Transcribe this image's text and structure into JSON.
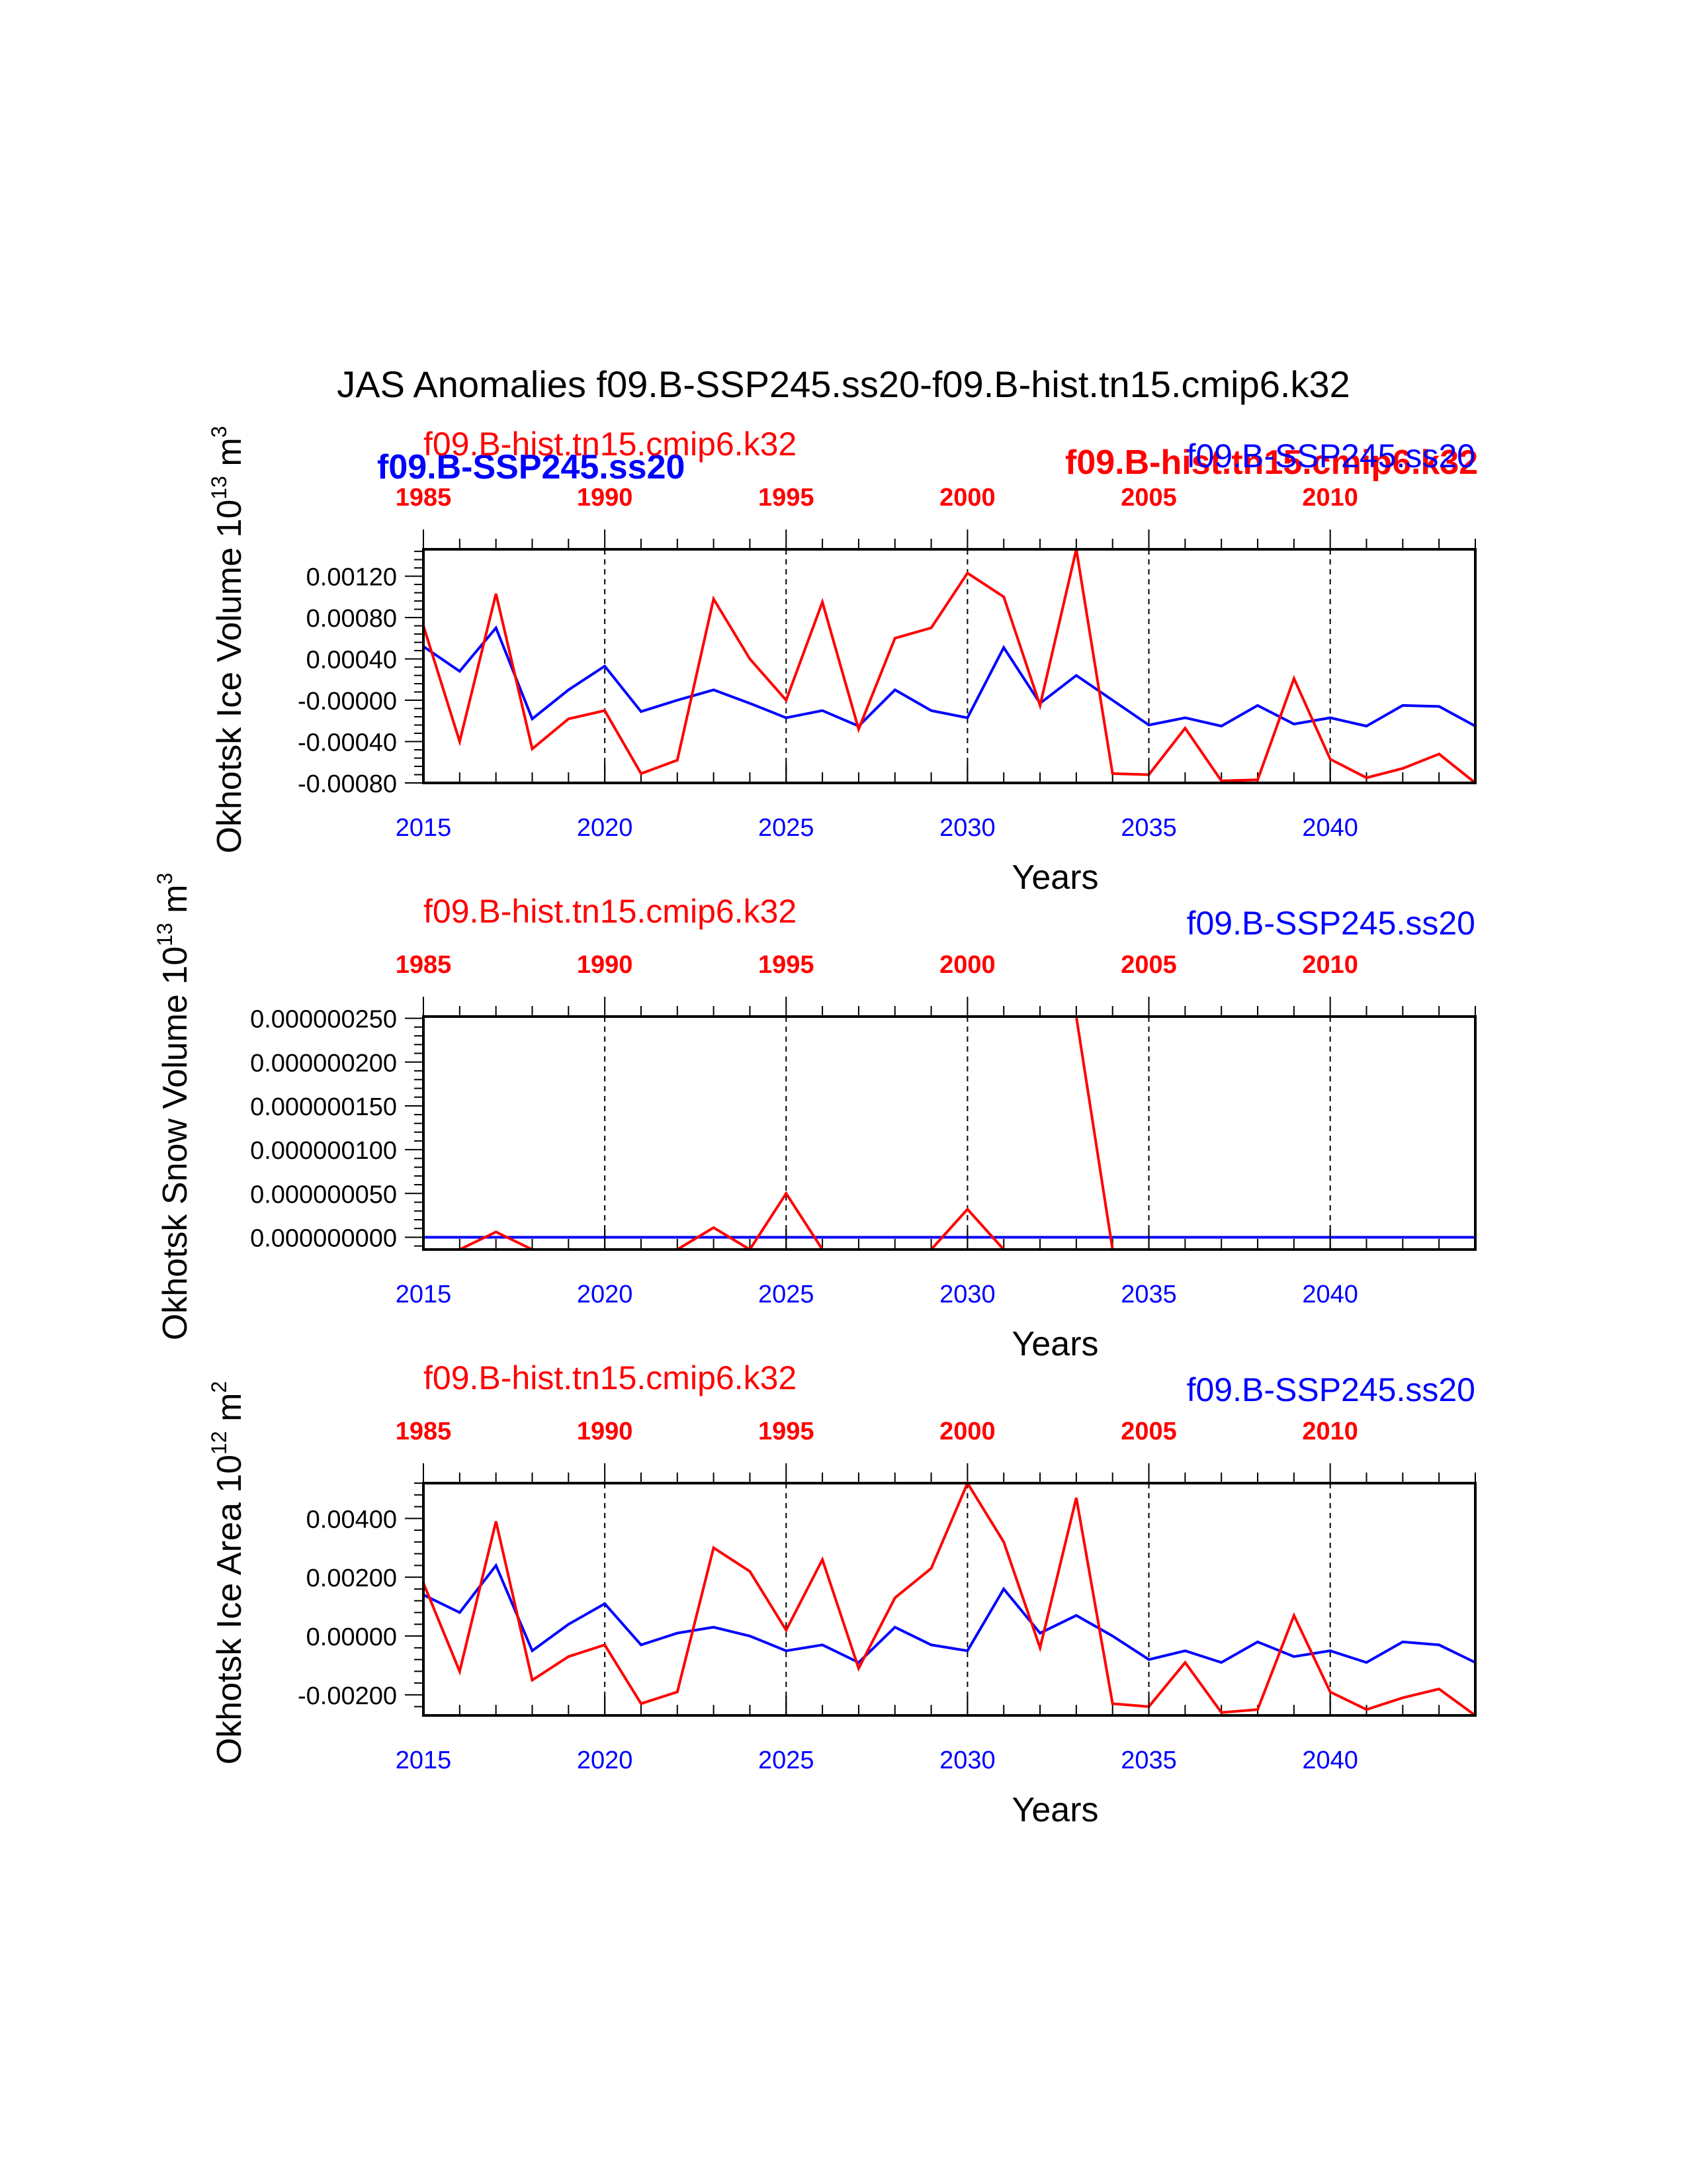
{
  "title": "JAS Anomalies f09.B-SSP245.ss20-f09.B-hist.tn15.cmip6.k32",
  "overlay_labels": {
    "blue_bold_left": "f09.B-SSP245.ss20",
    "red_bold_right": "f09.B-hist.tn15.cmip6.k32"
  },
  "colors": {
    "ssp245": "#0000ff",
    "hist": "#ff0000",
    "axis": "#000000"
  },
  "chart_data": [
    {
      "type": "line",
      "ylabel": "Okhotsk Ice Volume 10",
      "ylabel_sup": "13",
      "ylabel_unit": " m",
      "ylabel_unit_sup": "3",
      "xlabel": "Years",
      "top_left_label": "f09.B-hist.tn15.cmip6.k32",
      "top_right_label": "f09.B-SSP245.ss20",
      "ylim": [
        -0.0008,
        0.00146
      ],
      "yticks": [
        -0.0008,
        -0.0004,
        0.0,
        0.0004,
        0.0008,
        0.0012
      ],
      "ytick_labels": [
        "-0.00080",
        "-0.00040",
        "-0.00000",
        "0.00040",
        "0.00080",
        "0.00120"
      ],
      "xlim": [
        2015,
        2044
      ],
      "bottom_xticks": [
        2015,
        2020,
        2025,
        2030,
        2035,
        2040
      ],
      "bottom_xtick_labels": [
        "2015",
        "2020",
        "2025",
        "2030",
        "2035",
        "2040"
      ],
      "top_xtick_labels": [
        "1985",
        "1990",
        "1995",
        "2000",
        "2005",
        "2010"
      ],
      "x": [
        2015,
        2016,
        2017,
        2018,
        2019,
        2020,
        2021,
        2022,
        2023,
        2024,
        2025,
        2026,
        2027,
        2028,
        2029,
        2030,
        2031,
        2032,
        2033,
        2034,
        2035,
        2036,
        2037,
        2038,
        2039,
        2040,
        2041,
        2042,
        2043,
        2044
      ],
      "series": [
        {
          "name": "f09.B-SSP245.ss20",
          "color": "#0000ff",
          "values": [
            0.00052,
            0.00028,
            0.0007,
            -0.00018,
            0.0001,
            0.00033,
            -0.00011,
            -0.0,
            0.0001,
            -3e-05,
            -0.00017,
            -0.0001,
            -0.00025,
            0.0001,
            -0.0001,
            -0.00017,
            0.00051,
            -3e-05,
            0.00024,
            0.0,
            -0.00024,
            -0.00017,
            -0.00025,
            -5e-05,
            -0.00023,
            -0.00017,
            -0.00025,
            -5e-05,
            -6e-05,
            -0.00025
          ]
        },
        {
          "name": "f09.B-hist.tn15.cmip6.k32",
          "color": "#ff0000",
          "values": [
            0.00072,
            -0.0004,
            0.00103,
            -0.00047,
            -0.00018,
            -0.0001,
            -0.00071,
            -0.00058,
            0.00098,
            0.0004,
            0.0,
            0.00095,
            -0.00028,
            0.0006,
            0.0007,
            0.00123,
            0.001,
            -5e-05,
            0.00146,
            -0.00071,
            -0.00072,
            -0.00027,
            -0.00078,
            -0.00077,
            0.00021,
            -0.00057,
            -0.00075,
            -0.00066,
            -0.00052,
            -0.0008
          ]
        }
      ]
    },
    {
      "type": "line",
      "ylabel": "Okhotsk Snow Volume 10",
      "ylabel_sup": "13",
      "ylabel_unit": " m",
      "ylabel_unit_sup": "3",
      "xlabel": "Years",
      "top_left_label": "f09.B-hist.tn15.cmip6.k32",
      "top_right_label": "f09.B-SSP245.ss20",
      "ylim": [
        -1.4e-08,
        2.52e-07
      ],
      "yticks": [
        0.0,
        5e-08,
        1e-07,
        1.5e-07,
        2e-07,
        2.5e-07
      ],
      "ytick_labels": [
        "0.000000000",
        "0.000000050",
        "0.000000100",
        "0.000000150",
        "0.000000200",
        "0.000000250"
      ],
      "xlim": [
        2015,
        2044
      ],
      "bottom_xticks": [
        2015,
        2020,
        2025,
        2030,
        2035,
        2040
      ],
      "bottom_xtick_labels": [
        "2015",
        "2020",
        "2025",
        "2030",
        "2035",
        "2040"
      ],
      "top_xtick_labels": [
        "1985",
        "1990",
        "1995",
        "2000",
        "2005",
        "2010"
      ],
      "x": [
        2015,
        2016,
        2017,
        2018,
        2019,
        2020,
        2021,
        2022,
        2023,
        2024,
        2025,
        2026,
        2027,
        2028,
        2029,
        2030,
        2031,
        2032,
        2033,
        2034,
        2035,
        2036,
        2037,
        2038,
        2039,
        2040,
        2041,
        2042,
        2043,
        2044
      ],
      "series": [
        {
          "name": "f09.B-SSP245.ss20",
          "color": "#0000ff",
          "values": [
            0,
            0,
            0,
            0,
            0,
            0,
            0,
            0,
            0,
            0,
            0,
            0,
            0,
            0,
            0,
            0,
            0,
            0,
            0,
            0,
            0,
            0,
            0,
            0,
            0,
            0,
            0,
            0,
            0,
            0
          ]
        },
        {
          "name": "f09.B-hist.tn15.cmip6.k32",
          "color": "#ff0000",
          "values": [
            -1.4e-08,
            -1.4e-08,
            6e-09,
            -1.4e-08,
            null,
            null,
            null,
            -1.4e-08,
            1.1e-08,
            -1.4e-08,
            5e-08,
            -1.4e-08,
            null,
            null,
            -1.4e-08,
            3.2e-08,
            -1.4e-08,
            null,
            2.52e-07,
            -1.4e-08,
            null,
            null,
            null,
            null,
            null,
            null,
            null,
            null,
            null,
            null
          ]
        }
      ]
    },
    {
      "type": "line",
      "ylabel": "Okhotsk Ice Area 10",
      "ylabel_sup": "12",
      "ylabel_unit": " m",
      "ylabel_unit_sup": "2",
      "xlabel": "Years",
      "top_left_label": "f09.B-hist.tn15.cmip6.k32",
      "top_right_label": "f09.B-SSP245.ss20",
      "ylim": [
        -0.0027,
        0.0052
      ],
      "yticks": [
        -0.002,
        0.0,
        0.002,
        0.004
      ],
      "ytick_labels": [
        "-0.00200",
        "0.00000",
        "0.00200",
        "0.00400"
      ],
      "xlim": [
        2015,
        2044
      ],
      "bottom_xticks": [
        2015,
        2020,
        2025,
        2030,
        2035,
        2040
      ],
      "bottom_xtick_labels": [
        "2015",
        "2020",
        "2025",
        "2030",
        "2035",
        "2040"
      ],
      "top_xtick_labels": [
        "1985",
        "1990",
        "1995",
        "2000",
        "2005",
        "2010"
      ],
      "x": [
        2015,
        2016,
        2017,
        2018,
        2019,
        2020,
        2021,
        2022,
        2023,
        2024,
        2025,
        2026,
        2027,
        2028,
        2029,
        2030,
        2031,
        2032,
        2033,
        2034,
        2035,
        2036,
        2037,
        2038,
        2039,
        2040,
        2041,
        2042,
        2043,
        2044
      ],
      "series": [
        {
          "name": "f09.B-SSP245.ss20",
          "color": "#0000ff",
          "values": [
            0.0014,
            0.0008,
            0.0024,
            -0.0005,
            0.0004,
            0.0011,
            -0.0003,
            0.0001,
            0.0003,
            -0.0,
            -0.0005,
            -0.0003,
            -0.0009,
            0.0003,
            -0.0003,
            -0.0005,
            0.0016,
            0.0001,
            0.0007,
            0.0,
            -0.0008,
            -0.0005,
            -0.0009,
            -0.0002,
            -0.0007,
            -0.0005,
            -0.0009,
            -0.0002,
            -0.0003,
            -0.0009
          ]
        },
        {
          "name": "f09.B-hist.tn15.cmip6.k32",
          "color": "#ff0000",
          "values": [
            0.0018,
            -0.0012,
            0.0039,
            -0.0015,
            -0.0007,
            -0.0003,
            -0.0023,
            -0.0019,
            0.003,
            0.0022,
            0.0002,
            0.0026,
            -0.0011,
            0.0013,
            0.0023,
            0.0052,
            0.0032,
            -0.0004,
            0.0047,
            -0.0023,
            -0.0024,
            -0.0009,
            -0.0026,
            -0.0025,
            0.0007,
            -0.0019,
            -0.0025,
            -0.0021,
            -0.0018,
            -0.0027
          ]
        }
      ]
    }
  ]
}
